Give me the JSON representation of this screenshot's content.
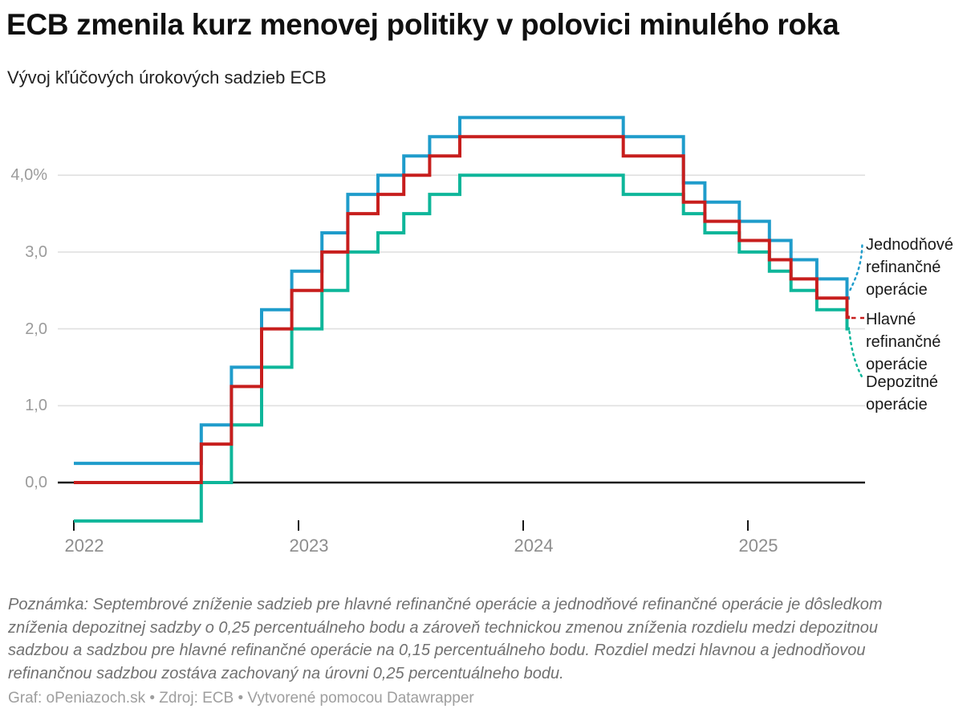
{
  "header": {
    "title": "ECB zmenila kurz menovej politiky v polovici minulého roka",
    "subtitle": "Vývoj kľúčových úrokových sadzieb ECB"
  },
  "chart_data": {
    "type": "line",
    "step": "after",
    "unit": "%",
    "title": "ECB zmenila kurz menovej politiky v polovici minulého roka",
    "subtitle": "Vývoj kľúčových úrokových sadzieb ECB",
    "grid": true,
    "legend_position": "right-of-line-end",
    "x_axis": {
      "ticks": [
        {
          "label": "2022",
          "year": 2022
        },
        {
          "label": "2023",
          "year": 2023
        },
        {
          "label": "2024",
          "year": 2024
        },
        {
          "label": "2025",
          "year": 2025
        }
      ],
      "range": [
        "2022-01-01",
        "2025-06-25"
      ]
    },
    "y_axis": {
      "ticks": [
        {
          "label": "4,0%",
          "value": 4.0
        },
        {
          "label": "3,0",
          "value": 3.0
        },
        {
          "label": "2,0",
          "value": 2.0
        },
        {
          "label": "1,0",
          "value": 1.0
        },
        {
          "label": "0,0",
          "value": 0.0
        }
      ],
      "ylim": [
        -0.5,
        4.75
      ],
      "zero_line": true
    },
    "series": [
      {
        "name": "Jednodňové refinančné operácie",
        "color": "#1F9CCB",
        "points": [
          [
            "2022-01-01",
            0.25
          ],
          [
            "2022-07-27",
            0.75
          ],
          [
            "2022-09-14",
            1.5
          ],
          [
            "2022-11-02",
            2.25
          ],
          [
            "2022-12-21",
            2.75
          ],
          [
            "2023-02-08",
            3.25
          ],
          [
            "2023-03-22",
            3.75
          ],
          [
            "2023-05-10",
            4.0
          ],
          [
            "2023-06-21",
            4.25
          ],
          [
            "2023-08-02",
            4.5
          ],
          [
            "2023-09-20",
            4.75
          ],
          [
            "2024-06-12",
            4.5
          ],
          [
            "2024-09-18",
            3.9
          ],
          [
            "2024-10-23",
            3.65
          ],
          [
            "2024-12-18",
            3.4
          ],
          [
            "2025-02-05",
            3.15
          ],
          [
            "2025-03-12",
            2.9
          ],
          [
            "2025-04-23",
            2.65
          ],
          [
            "2025-06-11",
            2.4
          ]
        ]
      },
      {
        "name": "Hlavné refinančné operácie",
        "color": "#C71E1D",
        "points": [
          [
            "2022-01-01",
            0.0
          ],
          [
            "2022-07-27",
            0.5
          ],
          [
            "2022-09-14",
            1.25
          ],
          [
            "2022-11-02",
            2.0
          ],
          [
            "2022-12-21",
            2.5
          ],
          [
            "2023-02-08",
            3.0
          ],
          [
            "2023-03-22",
            3.5
          ],
          [
            "2023-05-10",
            3.75
          ],
          [
            "2023-06-21",
            4.0
          ],
          [
            "2023-08-02",
            4.25
          ],
          [
            "2023-09-20",
            4.5
          ],
          [
            "2024-06-12",
            4.25
          ],
          [
            "2024-09-18",
            3.65
          ],
          [
            "2024-10-23",
            3.4
          ],
          [
            "2024-12-18",
            3.15
          ],
          [
            "2025-02-05",
            2.9
          ],
          [
            "2025-03-12",
            2.65
          ],
          [
            "2025-04-23",
            2.4
          ],
          [
            "2025-06-11",
            2.15
          ]
        ]
      },
      {
        "name": "Depozitné operácie",
        "color": "#0EB69A",
        "points": [
          [
            "2022-01-01",
            -0.5
          ],
          [
            "2022-07-27",
            0.0
          ],
          [
            "2022-09-14",
            0.75
          ],
          [
            "2022-11-02",
            1.5
          ],
          [
            "2022-12-21",
            2.0
          ],
          [
            "2023-02-08",
            2.5
          ],
          [
            "2023-03-22",
            3.0
          ],
          [
            "2023-05-10",
            3.25
          ],
          [
            "2023-06-21",
            3.5
          ],
          [
            "2023-08-02",
            3.75
          ],
          [
            "2023-09-20",
            4.0
          ],
          [
            "2024-06-12",
            3.75
          ],
          [
            "2024-09-18",
            3.5
          ],
          [
            "2024-10-23",
            3.25
          ],
          [
            "2024-12-18",
            3.0
          ],
          [
            "2025-02-05",
            2.75
          ],
          [
            "2025-03-12",
            2.5
          ],
          [
            "2025-04-23",
            2.25
          ],
          [
            "2025-06-11",
            2.0
          ]
        ]
      }
    ],
    "style_colors": {
      "gridline": "#E0E0E0",
      "zero_line": "#161616",
      "tick": "#161616",
      "y_label": "#9B9B9B",
      "x_label": "#8D8D8D"
    }
  },
  "notes": {
    "note": "Poznámka: Septembrové zníženie sadzieb pre hlavné refinančné operácie a jednodňové refinančné operácie je dôsledkom zníženia depozitnej sadzby o 0,25 percentuálneho bodu a zároveň technickou zmenou zníženia rozdielu medzi depozitnou sadzbou a sadzbou pre hlavné refinančné operácie na 0,15 percentuálneho bodu. Rozdiel medzi hlavnou a jednodňovou refinančnou sadzbou zostáva zachovaný na úrovni 0,25 percentuálneho bodu.",
    "footer": "Graf: oPeniazoch.sk • Zdroj: ECB • Vytvorené pomocou Datawrapper"
  }
}
